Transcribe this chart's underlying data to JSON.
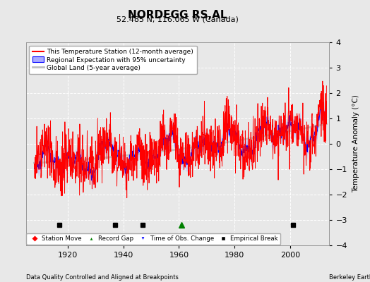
{
  "title": "NORDEGG RS,AL",
  "subtitle": "52.485 N, 116.065 W (Canada)",
  "ylabel": "Temperature Anomaly (°C)",
  "xlabel_note": "Data Quality Controlled and Aligned at Breakpoints",
  "attribution": "Berkeley Earth",
  "ylim": [
    -4,
    4
  ],
  "xlim": [
    1905,
    2014
  ],
  "xticks": [
    1920,
    1940,
    1960,
    1980,
    2000
  ],
  "yticks": [
    -4,
    -3,
    -2,
    -1,
    0,
    1,
    2,
    3,
    4
  ],
  "background_color": "#e8e8e8",
  "plot_bg_color": "#e8e8e8",
  "grid_color": "#ffffff",
  "red_color": "#ff0000",
  "blue_color": "#0000ff",
  "blue_fill_color": "#aaaaff",
  "gray_color": "#c0c0c0",
  "empirical_break_years": [
    1917,
    1937,
    1947,
    2001
  ],
  "record_gap_years": [
    1961
  ],
  "station_move_years": [],
  "obs_change_years": [],
  "marker_y": -3.2
}
